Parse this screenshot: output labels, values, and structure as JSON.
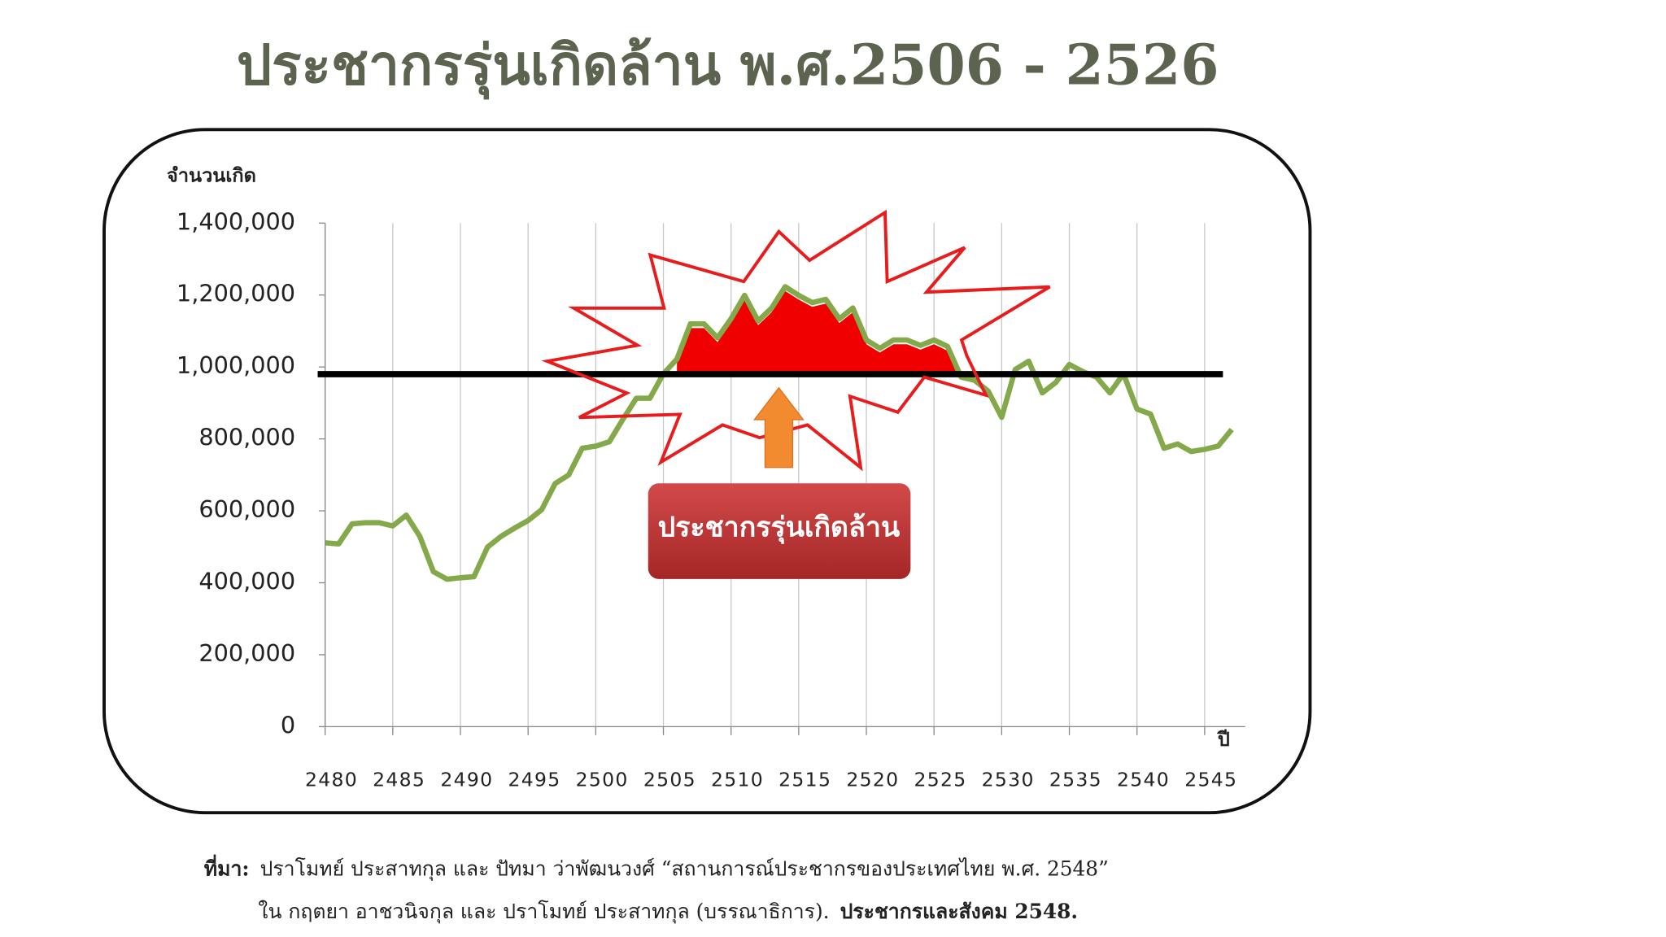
{
  "chart_data": {
    "type": "line",
    "title": "ประชากรรุ่นเกิดล้าน พ.ศ.2506 - 2526",
    "y_label": "จำนวนเกิด",
    "x_label": "ปี",
    "annotation": "ประชากรรุ่นเกิดล้าน",
    "x": [
      2480,
      2481,
      2482,
      2483,
      2484,
      2485,
      2486,
      2487,
      2488,
      2489,
      2490,
      2491,
      2492,
      2493,
      2494,
      2495,
      2496,
      2497,
      2498,
      2499,
      2500,
      2501,
      2502,
      2503,
      2504,
      2505,
      2506,
      2507,
      2508,
      2509,
      2510,
      2511,
      2512,
      2513,
      2514,
      2515,
      2516,
      2517,
      2518,
      2519,
      2520,
      2521,
      2522,
      2523,
      2524,
      2525,
      2526,
      2527,
      2528,
      2529,
      2530,
      2531,
      2532,
      2533,
      2534,
      2535,
      2536,
      2537,
      2538,
      2539,
      2540,
      2541,
      2542,
      2543,
      2544,
      2545,
      2546,
      2547
    ],
    "series": [
      {
        "color": "#84a94a",
        "values": [
          511000,
          508000,
          564000,
          567000,
          567000,
          558000,
          588000,
          529000,
          431000,
          410000,
          414000,
          417000,
          499000,
          529000,
          552000,
          573000,
          603000,
          676000,
          700000,
          774000,
          780000,
          792000,
          854000,
          913000,
          913000,
          981000,
          1022000,
          1120000,
          1120000,
          1081000,
          1134000,
          1199000,
          1128000,
          1164000,
          1223000,
          1199000,
          1179000,
          1188000,
          1134000,
          1164000,
          1075000,
          1052000,
          1075000,
          1075000,
          1060000,
          1075000,
          1057000,
          972000,
          963000,
          933000,
          860000,
          993000,
          1016000,
          928000,
          957000,
          1007000,
          987000,
          972000,
          928000,
          981000,
          883000,
          869000,
          774000,
          786000,
          765000,
          771000,
          780000,
          826000
        ]
      }
    ],
    "reference_line": 980000,
    "xlim": [
      2480,
      2548
    ],
    "xticks": [
      2480,
      2485,
      2490,
      2495,
      2500,
      2505,
      2510,
      2515,
      2520,
      2525,
      2530,
      2535,
      2540,
      2545
    ],
    "ylim": [
      0,
      1400000
    ],
    "yticks": [
      0,
      {
        "value": 200000,
        "label": "200,000"
      },
      {
        "value": 400000,
        "label": "400,000"
      },
      {
        "value": 600000,
        "label": "600,000"
      },
      {
        "value": 800000,
        "label": "800,000"
      },
      {
        "value": 1000000,
        "label": "1,000,000"
      },
      {
        "value": 1200000,
        "label": "1,200,000"
      },
      {
        "value": 1400000,
        "label": "1,400,000"
      }
    ],
    "grid": true,
    "source": [
      [
        "ที่มา:",
        "ปราโมทย์ ประสาทกุล และ ปัทมา ว่าพัฒนวงศ์ “สถานการณ์ประชากรของประเทศไทย พ.ศ. 2548”"
      ],
      [
        "ใน กฤตยา อาชวนิจกุล และ ปราโมทย์ ประสาทกุล (บรรณาธิการ).",
        "ประชากรและสังคม 2548."
      ]
    ]
  }
}
